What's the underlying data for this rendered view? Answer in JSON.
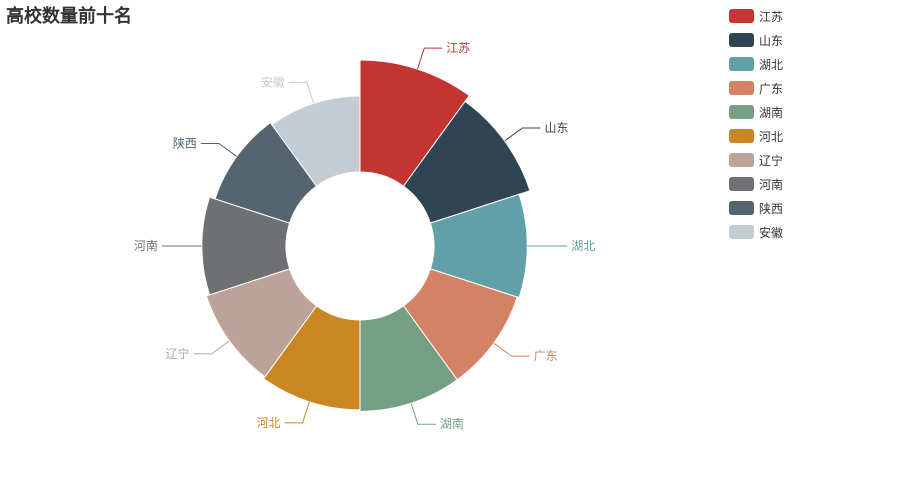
{
  "chart_data": {
    "type": "pie",
    "variant": "rose-radius-donut",
    "title": "高校数量前十名",
    "categories": [
      "江苏",
      "山东",
      "湖北",
      "广东",
      "湖南",
      "河北",
      "辽宁",
      "河南",
      "陕西",
      "安徽"
    ],
    "values": [
      167,
      152,
      128,
      124,
      124,
      121,
      116,
      109,
      97,
      92
    ],
    "colors": [
      "#c23531",
      "#2f4554",
      "#61a0a8",
      "#d48265",
      "#749f83",
      "#ca8622",
      "#bda29a",
      "#6e7074",
      "#546570",
      "#c4ccd3"
    ],
    "legend_position": "top-right"
  }
}
